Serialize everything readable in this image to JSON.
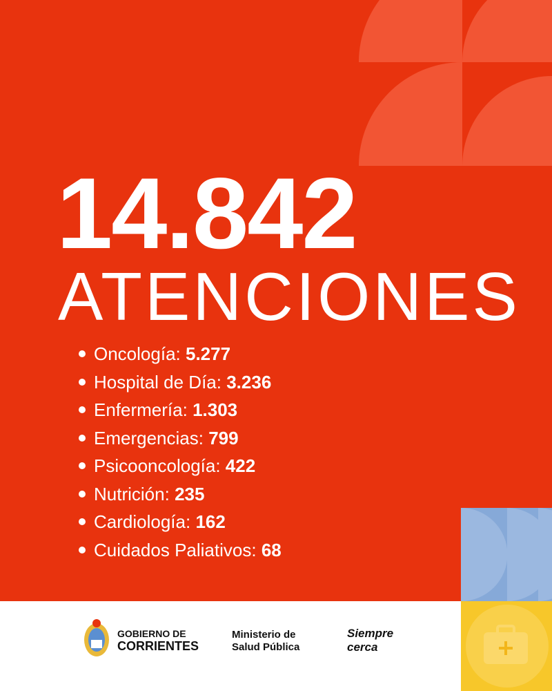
{
  "headline": {
    "number": "14.842",
    "label": "ATENCIONES"
  },
  "items": [
    {
      "label": "Oncología:",
      "value": "5.277"
    },
    {
      "label": "Hospital de Día:",
      "value": "3.236"
    },
    {
      "label": "Enfermería:",
      "value": "1.303"
    },
    {
      "label": "Emergencias:",
      "value": "799"
    },
    {
      "label": "Psicooncología:",
      "value": "422"
    },
    {
      "label": "Nutrición:",
      "value": "235"
    },
    {
      "label": "Cardiología:",
      "value": "162"
    },
    {
      "label": "Cuidados Paliativos:",
      "value": "68"
    }
  ],
  "footer": {
    "government": [
      "GOBIERNO DE",
      "CORRIENTES"
    ],
    "ministry": [
      "Ministerio de",
      "Salud Pública"
    ],
    "slogan": [
      "Siempre",
      "cerca"
    ]
  }
}
